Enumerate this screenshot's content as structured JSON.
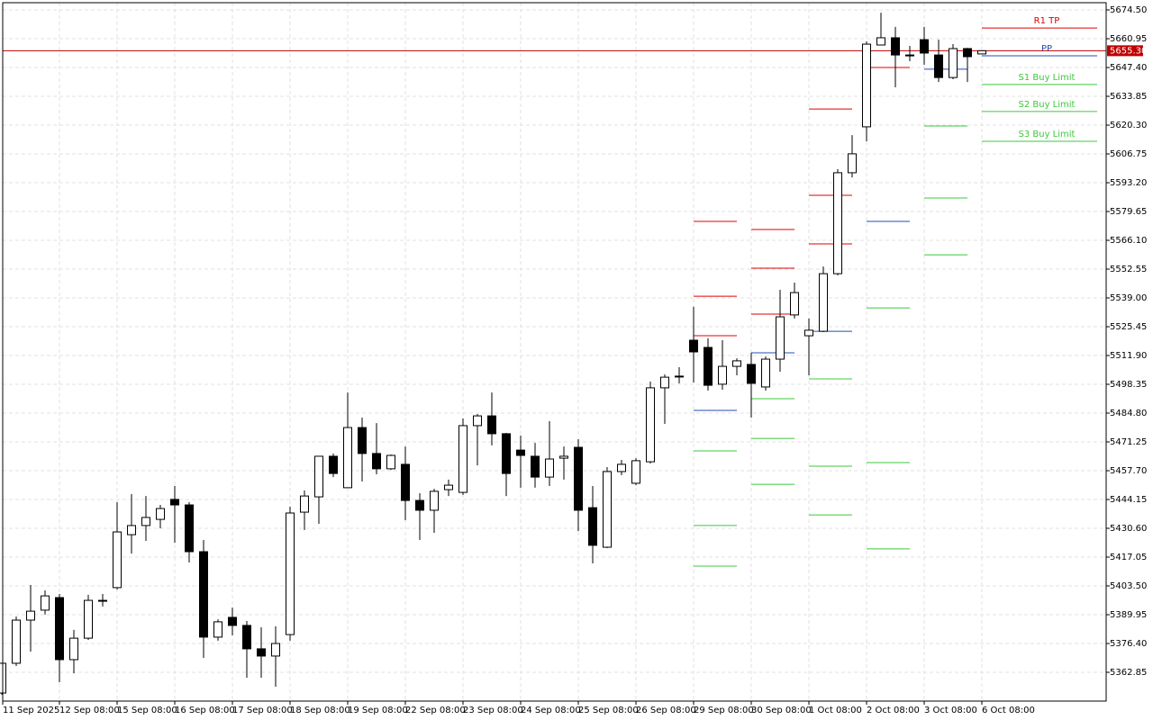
{
  "chart_data": {
    "type": "candlestick",
    "categories": [
      "11 Sep 2025",
      null,
      null,
      null,
      "12 Sep 08:00",
      null,
      null,
      null,
      "15 Sep 08:00",
      null,
      null,
      null,
      "16 Sep 08:00",
      null,
      null,
      null,
      "17 Sep 08:00",
      null,
      null,
      null,
      "18 Sep 08:00",
      null,
      null,
      null,
      "19 Sep 08:00",
      null,
      null,
      null,
      "22 Sep 08:00",
      null,
      null,
      null,
      "23 Sep 08:00",
      null,
      null,
      null,
      "24 Sep 08:00",
      null,
      null,
      null,
      "25 Sep 08:00",
      null,
      null,
      null,
      "26 Sep 08:00",
      null,
      null,
      null,
      "29 Sep 08:00",
      null,
      null,
      null,
      "30 Sep 08:00",
      null,
      null,
      null,
      "1 Oct 08:00",
      null,
      null,
      null,
      "2 Oct 08:00",
      null,
      null,
      null,
      "3 Oct 08:00",
      null,
      null,
      null,
      "6 Oct 08:00"
    ],
    "open": [
      5353.1,
      5367.1,
      5387.4,
      5392.1,
      5398.0,
      5368.8,
      5378.9,
      5396.3,
      5402.7,
      5427.6,
      5431.9,
      5434.8,
      5444.2,
      5441.6,
      5419.6,
      5379.4,
      5388.7,
      5384.9,
      5373.9,
      5370.5,
      5380.6,
      5438.2,
      5445.4,
      5464.5,
      5449.7,
      5478.0,
      5465.8,
      5458.6,
      5460.7,
      5443.7,
      5439.1,
      5448.8,
      5447.5,
      5478.9,
      5483.5,
      5475.1,
      5467.4,
      5464.5,
      5454.7,
      5463.6,
      5468.7,
      5440.3,
      5421.7,
      5457.3,
      5451.8,
      5461.9,
      5496.7,
      5502.2,
      5519.1,
      5515.7,
      5498.4,
      5506.8,
      5507.7,
      5497.1,
      5510.2,
      5531.0,
      5521.2,
      5523.3,
      5550.4,
      5597.9,
      5619.5,
      5658.0,
      5661.4,
      5653.3,
      5660.5,
      5653.3,
      5642.7,
      5656.3,
      5653.8
    ],
    "high": [
      5367.1,
      5389.1,
      5403.9,
      5401.4,
      5399.7,
      5382.8,
      5399.3,
      5399.7,
      5442.9,
      5446.7,
      5445.8,
      5441.6,
      5450.5,
      5442.9,
      5425.1,
      5387.8,
      5393.3,
      5387.0,
      5384.0,
      5384.5,
      5440.8,
      5448.4,
      5464.5,
      5465.8,
      5494.5,
      5482.7,
      5480.1,
      5465.3,
      5469.1,
      5447.1,
      5449.2,
      5453.5,
      5482.3,
      5484.4,
      5494.5,
      5475.5,
      5474.2,
      5470.8,
      5481.0,
      5469.1,
      5472.5,
      5450.5,
      5459.4,
      5462.8,
      5463.6,
      5499.6,
      5503.0,
      5506.4,
      5534.8,
      5520.0,
      5519.1,
      5510.6,
      5513.2,
      5511.5,
      5542.8,
      5546.2,
      5529.3,
      5553.8,
      5599.6,
      5615.6,
      5659.7,
      5673.2,
      5666.5,
      5657.6,
      5666.5,
      5660.5,
      5658.4,
      5656.7,
      5655.3
    ],
    "low": [
      5352.3,
      5365.8,
      5372.6,
      5390.0,
      5358.2,
      5362.4,
      5378.1,
      5393.8,
      5401.8,
      5418.7,
      5424.7,
      5430.6,
      5423.8,
      5414.5,
      5369.6,
      5377.7,
      5380.2,
      5360.3,
      5360.3,
      5356.1,
      5377.7,
      5429.8,
      5432.7,
      5454.7,
      5449.7,
      5452.6,
      5456.0,
      5458.1,
      5434.4,
      5425.1,
      5428.5,
      5445.8,
      5446.3,
      5460.2,
      5469.6,
      5445.8,
      5449.7,
      5449.7,
      5450.5,
      5453.5,
      5429.3,
      5414.1,
      5421.3,
      5455.6,
      5450.9,
      5461.1,
      5479.7,
      5498.8,
      5499.2,
      5495.4,
      5495.8,
      5502.6,
      5482.7,
      5495.4,
      5504.3,
      5529.3,
      5502.6,
      5522.9,
      5549.6,
      5595.7,
      5612.7,
      5658.0,
      5638.1,
      5650.4,
      5648.7,
      5640.6,
      5641.9,
      5640.6,
      5653.8
    ],
    "close": [
      5367.1,
      5387.4,
      5391.6,
      5398.8,
      5368.8,
      5378.9,
      5396.7,
      5396.7,
      5428.9,
      5431.9,
      5435.7,
      5439.9,
      5441.6,
      5419.6,
      5379.4,
      5386.6,
      5384.9,
      5373.9,
      5370.5,
      5376.4,
      5437.8,
      5445.8,
      5464.5,
      5456.4,
      5478.0,
      5465.8,
      5458.6,
      5464.9,
      5443.7,
      5439.1,
      5448.0,
      5450.9,
      5478.9,
      5483.5,
      5475.1,
      5456.4,
      5464.9,
      5454.7,
      5463.2,
      5464.5,
      5439.1,
      5422.6,
      5457.3,
      5460.7,
      5462.4,
      5496.7,
      5501.7,
      5502.2,
      5513.6,
      5497.9,
      5506.8,
      5509.4,
      5498.8,
      5510.2,
      5530.1,
      5541.5,
      5523.8,
      5550.4,
      5597.9,
      5606.8,
      5658.4,
      5661.4,
      5653.3,
      5653.3,
      5654.2,
      5642.7,
      5656.3,
      5652.5,
      5655.3
    ],
    "ylim": [
      5349.3,
      5677.9
    ],
    "yticks": [
      {
        "value": 5674.5,
        "label": "5674.50"
      },
      {
        "value": 5660.95,
        "label": "5660.95"
      },
      {
        "value": 5647.4,
        "label": "5647.40"
      },
      {
        "value": 5633.85,
        "label": "5633.85"
      },
      {
        "value": 5620.3,
        "label": "5620.30"
      },
      {
        "value": 5606.75,
        "label": "5606.75"
      },
      {
        "value": 5593.2,
        "label": "5593.20"
      },
      {
        "value": 5579.65,
        "label": "5579.65"
      },
      {
        "value": 5566.1,
        "label": "5566.10"
      },
      {
        "value": 5552.55,
        "label": "5552.55"
      },
      {
        "value": 5539,
        "label": "5539.00"
      },
      {
        "value": 5525.45,
        "label": "5525.45"
      },
      {
        "value": 5511.9,
        "label": "5511.90"
      },
      {
        "value": 5498.35,
        "label": "5498.35"
      },
      {
        "value": 5484.8,
        "label": "5484.80"
      },
      {
        "value": 5471.25,
        "label": "5471.25"
      },
      {
        "value": 5457.7,
        "label": "5457.70"
      },
      {
        "value": 5444.15,
        "label": "5444.15"
      },
      {
        "value": 5430.6,
        "label": "5430.60"
      },
      {
        "value": 5417.05,
        "label": "5417.05"
      },
      {
        "value": 5403.5,
        "label": "5403.50"
      },
      {
        "value": 5389.95,
        "label": "5389.95"
      },
      {
        "value": 5376.4,
        "label": "5376.40"
      },
      {
        "value": 5362.85,
        "label": "5362.85"
      }
    ],
    "grid": true,
    "bull_color": "#ffffff",
    "bear_color": "#000000",
    "current_price": {
      "value": 5655.3,
      "label": "5655.30",
      "color": "#c00000"
    },
    "pivot_colors": {
      "red": "#e00000",
      "blue": "#1f4fb5",
      "green": "#3cc83c"
    },
    "pivots": [
      {
        "bar": 48,
        "red": [
          5575.0,
          5539.8,
          5521.2
        ],
        "blue": [
          5486.1
        ],
        "green": [
          5467.0,
          5431.9,
          5412.8
        ]
      },
      {
        "bar": 52,
        "red": [
          5571.2,
          5553.0,
          5531.4
        ],
        "blue": [
          5513.2
        ],
        "green": [
          5491.6,
          5472.9,
          5451.3
        ]
      },
      {
        "bar": 56,
        "red": [
          5627.9,
          5587.3,
          5564.4
        ],
        "blue": [
          5523.3
        ],
        "green": [
          5500.9,
          5459.8,
          5436.9
        ]
      },
      {
        "bar": 60,
        "red": [
          5647.4
        ],
        "blue": [
          5575.0
        ],
        "green": [
          5534.3,
          5461.5,
          5420.9
        ]
      },
      {
        "bar": 64,
        "blue": [
          5646.6
        ],
        "green": [
          5619.9,
          5586.0,
          5559.3
        ]
      }
    ],
    "levels_bar": 68,
    "levels": [
      {
        "name": "R1 TP",
        "value": 5666.0,
        "color": "#e00000"
      },
      {
        "name": "PP",
        "value": 5652.9,
        "color": "#1f4fb5"
      },
      {
        "name": "S1 Buy Limit",
        "value": 5639.4,
        "color": "#3cc83c"
      },
      {
        "name": "S2 Buy Limit",
        "value": 5626.7,
        "color": "#3cc83c"
      },
      {
        "name": "S3 Buy Limit",
        "value": 5612.7,
        "color": "#3cc83c"
      }
    ]
  }
}
